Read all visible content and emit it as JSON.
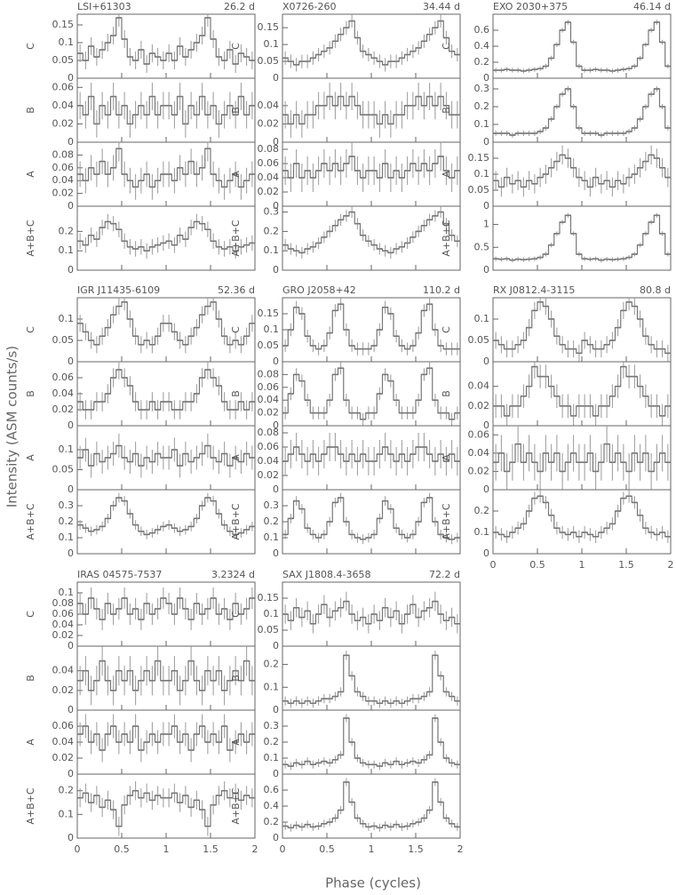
{
  "figure": {
    "xlabel": "Phase (cycles)",
    "ylabel": "Intensity (ASM counts/s)"
  },
  "chart_data": [
    {
      "type": "step",
      "title": "LSI+61303",
      "period": "26.2 d",
      "xlim": [
        0,
        2
      ],
      "xticks": [
        0,
        0.5,
        1,
        1.5,
        2
      ],
      "panels": [
        {
          "label": "C",
          "ylim": [
            0,
            0.18
          ],
          "yticks": [
            0,
            0.05,
            0.1,
            0.15
          ],
          "values": [
            0.07,
            0.05,
            0.09,
            0.06,
            0.08,
            0.1,
            0.12,
            0.17,
            0.11,
            0.06,
            0.05,
            0.08,
            0.04,
            0.07,
            0.06,
            0.05
          ],
          "error": 0.025
        },
        {
          "label": "B",
          "ylim": [
            0,
            0.07
          ],
          "yticks": [
            0,
            0.02,
            0.04,
            0.06
          ],
          "values": [
            0.04,
            0.03,
            0.05,
            0.02,
            0.04,
            0.03,
            0.05,
            0.03,
            0.04,
            0.02,
            0.03,
            0.04,
            0.03,
            0.05,
            0.03,
            0.04
          ],
          "error": 0.015
        },
        {
          "label": "A",
          "ylim": [
            0,
            0.1
          ],
          "yticks": [
            0,
            0.02,
            0.04,
            0.06,
            0.08
          ],
          "values": [
            0.05,
            0.04,
            0.06,
            0.05,
            0.07,
            0.05,
            0.06,
            0.09,
            0.05,
            0.04,
            0.03,
            0.04,
            0.05,
            0.03,
            0.04,
            0.05
          ],
          "error": 0.02
        },
        {
          "label": "A+B+C",
          "ylim": [
            0,
            0.33
          ],
          "yticks": [
            0,
            0.1,
            0.2
          ],
          "values": [
            0.15,
            0.13,
            0.18,
            0.16,
            0.22,
            0.25,
            0.24,
            0.21,
            0.15,
            0.12,
            0.11,
            0.12,
            0.1,
            0.12,
            0.13,
            0.14
          ],
          "error": 0.04
        }
      ]
    },
    {
      "type": "step",
      "title": "X0726-260",
      "period": "34.44 d",
      "xlim": [
        0,
        2
      ],
      "xticks": [
        0,
        0.5,
        1,
        1.5,
        2
      ],
      "panels": [
        {
          "label": "C",
          "ylim": [
            0,
            0.19
          ],
          "yticks": [
            0,
            0.05,
            0.1,
            0.15
          ],
          "values": [
            0.06,
            0.05,
            0.04,
            0.05,
            0.05,
            0.06,
            0.07,
            0.08,
            0.09,
            0.11,
            0.13,
            0.15,
            0.17,
            0.12,
            0.08,
            0.07
          ],
          "error": 0.02
        },
        {
          "label": "B",
          "ylim": [
            0,
            0.07
          ],
          "yticks": [
            0,
            0.02,
            0.04
          ],
          "values": [
            0.03,
            0.02,
            0.03,
            0.02,
            0.03,
            0.03,
            0.04,
            0.04,
            0.05,
            0.04,
            0.05,
            0.04,
            0.05,
            0.04,
            0.03,
            0.03
          ],
          "error": 0.015
        },
        {
          "label": "A",
          "ylim": [
            0,
            0.09
          ],
          "yticks": [
            0,
            0.02,
            0.04,
            0.06,
            0.08
          ],
          "values": [
            0.05,
            0.04,
            0.06,
            0.04,
            0.05,
            0.04,
            0.05,
            0.06,
            0.05,
            0.06,
            0.05,
            0.06,
            0.07,
            0.05,
            0.04,
            0.05
          ],
          "error": 0.02
        },
        {
          "label": "A+B+C",
          "ylim": [
            0,
            0.33
          ],
          "yticks": [
            0,
            0.1,
            0.2,
            0.3
          ],
          "values": [
            0.13,
            0.11,
            0.1,
            0.09,
            0.11,
            0.12,
            0.14,
            0.17,
            0.2,
            0.23,
            0.26,
            0.28,
            0.3,
            0.24,
            0.18,
            0.15
          ],
          "error": 0.03
        }
      ]
    },
    {
      "type": "step",
      "title": "EXO 2030+375",
      "period": "46.14 d",
      "xlim": [
        0,
        2
      ],
      "xticks": [
        0,
        0.5,
        1,
        1.5,
        2
      ],
      "panels": [
        {
          "label": "C",
          "ylim": [
            0,
            0.8
          ],
          "yticks": [
            0,
            0.2,
            0.4,
            0.6
          ],
          "values": [
            0.1,
            0.1,
            0.11,
            0.1,
            0.1,
            0.09,
            0.1,
            0.11,
            0.12,
            0.15,
            0.25,
            0.42,
            0.6,
            0.7,
            0.45,
            0.15
          ],
          "error": 0.03
        },
        {
          "label": "B",
          "ylim": [
            0,
            0.36
          ],
          "yticks": [
            0,
            0.1,
            0.2,
            0.3
          ],
          "values": [
            0.05,
            0.05,
            0.05,
            0.04,
            0.05,
            0.05,
            0.05,
            0.05,
            0.06,
            0.08,
            0.13,
            0.2,
            0.27,
            0.3,
            0.2,
            0.08
          ],
          "error": 0.015
        },
        {
          "label": "A",
          "ylim": [
            0,
            0.2
          ],
          "yticks": [
            0,
            0.05,
            0.1,
            0.15
          ],
          "values": [
            0.08,
            0.06,
            0.09,
            0.07,
            0.08,
            0.06,
            0.08,
            0.07,
            0.09,
            0.1,
            0.12,
            0.14,
            0.16,
            0.15,
            0.12,
            0.09
          ],
          "error": 0.03
        },
        {
          "label": "A+B+C",
          "ylim": [
            0,
            1.4
          ],
          "yticks": [
            0,
            0.5,
            1
          ],
          "values": [
            0.25,
            0.24,
            0.25,
            0.22,
            0.24,
            0.23,
            0.24,
            0.25,
            0.28,
            0.35,
            0.55,
            0.8,
            1.05,
            1.2,
            0.8,
            0.35
          ],
          "error": 0.05
        }
      ]
    },
    {
      "type": "step",
      "title": "IGR J11435-6109",
      "period": "52.36 d",
      "xlim": [
        0,
        2
      ],
      "xticks": [
        0,
        0.5,
        1,
        1.5,
        2
      ],
      "panels": [
        {
          "label": "C",
          "ylim": [
            0,
            0.15
          ],
          "yticks": [
            0,
            0.05,
            0.1
          ],
          "values": [
            0.09,
            0.07,
            0.05,
            0.04,
            0.06,
            0.08,
            0.11,
            0.13,
            0.14,
            0.1,
            0.06,
            0.04,
            0.05,
            0.04,
            0.06,
            0.09
          ],
          "error": 0.02
        },
        {
          "label": "B",
          "ylim": [
            0,
            0.08
          ],
          "yticks": [
            0,
            0.02,
            0.04,
            0.06
          ],
          "values": [
            0.03,
            0.02,
            0.02,
            0.03,
            0.03,
            0.04,
            0.06,
            0.07,
            0.06,
            0.05,
            0.03,
            0.02,
            0.02,
            0.03,
            0.02,
            0.03
          ],
          "error": 0.012
        },
        {
          "label": "A",
          "ylim": [
            0,
            0.16
          ],
          "yticks": [
            0,
            0.05,
            0.1
          ],
          "values": [
            0.08,
            0.1,
            0.06,
            0.09,
            0.07,
            0.08,
            0.09,
            0.11,
            0.08,
            0.07,
            0.09,
            0.06,
            0.08,
            0.07,
            0.09,
            0.08
          ],
          "error": 0.03
        },
        {
          "label": "A+B+C",
          "ylim": [
            0,
            0.4
          ],
          "yticks": [
            0,
            0.1,
            0.2,
            0.3
          ],
          "values": [
            0.18,
            0.16,
            0.14,
            0.15,
            0.17,
            0.22,
            0.3,
            0.35,
            0.33,
            0.25,
            0.18,
            0.14,
            0.12,
            0.13,
            0.15,
            0.17
          ],
          "error": 0.03
        }
      ]
    },
    {
      "type": "step",
      "title": "GRO J2058+42",
      "period": "110.2 d",
      "xlim": [
        0,
        2
      ],
      "xticks": [
        0,
        0.5,
        1,
        1.5,
        2
      ],
      "panels": [
        {
          "label": "C",
          "ylim": [
            0,
            0.2
          ],
          "yticks": [
            0,
            0.05,
            0.1,
            0.15
          ],
          "values": [
            0.05,
            0.1,
            0.17,
            0.15,
            0.08,
            0.05,
            0.04,
            0.05,
            0.09,
            0.16,
            0.18,
            0.1,
            0.05,
            0.04,
            0.04,
            0.04
          ],
          "error": 0.02
        },
        {
          "label": "B",
          "ylim": [
            0,
            0.1
          ],
          "yticks": [
            0,
            0.02,
            0.04,
            0.06,
            0.08
          ],
          "values": [
            0.02,
            0.05,
            0.08,
            0.07,
            0.04,
            0.02,
            0.02,
            0.02,
            0.04,
            0.08,
            0.09,
            0.04,
            0.02,
            0.02,
            0.01,
            0.02
          ],
          "error": 0.01
        },
        {
          "label": "A",
          "ylim": [
            0,
            0.09
          ],
          "yticks": [
            0,
            0.02,
            0.04,
            0.06,
            0.08
          ],
          "values": [
            0.04,
            0.05,
            0.06,
            0.05,
            0.04,
            0.05,
            0.04,
            0.05,
            0.06,
            0.06,
            0.05,
            0.04,
            0.05,
            0.04,
            0.05,
            0.04
          ],
          "error": 0.02
        },
        {
          "label": "A+B+C",
          "ylim": [
            0,
            0.4
          ],
          "yticks": [
            0,
            0.1,
            0.2,
            0.3
          ],
          "values": [
            0.12,
            0.22,
            0.33,
            0.28,
            0.16,
            0.12,
            0.1,
            0.12,
            0.2,
            0.32,
            0.35,
            0.2,
            0.12,
            0.1,
            0.09,
            0.1
          ],
          "error": 0.03
        }
      ]
    },
    {
      "type": "step",
      "title": "RX J0812.4-3115",
      "period": "80.8 d",
      "xlim": [
        0,
        2
      ],
      "xticks": [
        0,
        0.5,
        1,
        1.5,
        2
      ],
      "panels": [
        {
          "label": "C",
          "ylim": [
            0,
            0.15
          ],
          "yticks": [
            0,
            0.05,
            0.1
          ],
          "values": [
            0.05,
            0.04,
            0.03,
            0.03,
            0.04,
            0.05,
            0.08,
            0.12,
            0.14,
            0.13,
            0.1,
            0.06,
            0.04,
            0.03,
            0.03,
            0.02
          ],
          "error": 0.02
        },
        {
          "label": "B",
          "ylim": [
            0,
            0.065
          ],
          "yticks": [
            0,
            0.02,
            0.04
          ],
          "values": [
            0.02,
            0.02,
            0.01,
            0.02,
            0.02,
            0.03,
            0.04,
            0.06,
            0.05,
            0.05,
            0.04,
            0.03,
            0.02,
            0.02,
            0.01,
            0.02
          ],
          "error": 0.012
        },
        {
          "label": "A",
          "ylim": [
            0,
            0.07
          ],
          "yticks": [
            0,
            0.02,
            0.04,
            0.06
          ],
          "values": [
            0.03,
            0.04,
            0.02,
            0.03,
            0.05,
            0.03,
            0.04,
            0.03,
            0.02,
            0.04,
            0.03,
            0.04,
            0.02,
            0.03,
            0.04,
            0.03
          ],
          "error": 0.02
        },
        {
          "label": "A+B+C",
          "ylim": [
            0,
            0.3
          ],
          "yticks": [
            0,
            0.1,
            0.2
          ],
          "values": [
            0.1,
            0.09,
            0.08,
            0.1,
            0.12,
            0.14,
            0.2,
            0.26,
            0.27,
            0.24,
            0.18,
            0.12,
            0.1,
            0.09,
            0.1,
            0.08
          ],
          "error": 0.03
        }
      ]
    },
    {
      "type": "step",
      "title": "IRAS 04575-7537",
      "period": "3.2324 d",
      "xlim": [
        0,
        2
      ],
      "xticks": [
        0,
        0.5,
        1,
        1.5,
        2
      ],
      "panels": [
        {
          "label": "C",
          "ylim": [
            0,
            0.12
          ],
          "yticks": [
            0,
            0.02,
            0.04,
            0.06,
            0.08,
            0.1
          ],
          "values": [
            0.08,
            0.06,
            0.09,
            0.07,
            0.05,
            0.08,
            0.06,
            0.07,
            0.09,
            0.06,
            0.07,
            0.05,
            0.08,
            0.06,
            0.07,
            0.09
          ],
          "error": 0.02
        },
        {
          "label": "B",
          "ylim": [
            0,
            0.065
          ],
          "yticks": [
            0,
            0.02,
            0.04
          ],
          "values": [
            0.03,
            0.04,
            0.02,
            0.03,
            0.05,
            0.03,
            0.02,
            0.04,
            0.03,
            0.04,
            0.02,
            0.03,
            0.04,
            0.03,
            0.05,
            0.03
          ],
          "error": 0.015
        },
        {
          "label": "A",
          "ylim": [
            0,
            0.08
          ],
          "yticks": [
            0,
            0.02,
            0.04,
            0.06
          ],
          "values": [
            0.05,
            0.06,
            0.04,
            0.05,
            0.03,
            0.05,
            0.06,
            0.04,
            0.05,
            0.04,
            0.06,
            0.03,
            0.04,
            0.05,
            0.04,
            0.05
          ],
          "error": 0.015
        },
        {
          "label": "A+B+C",
          "ylim": [
            0,
            0.27
          ],
          "yticks": [
            0,
            0.1,
            0.2
          ],
          "values": [
            0.17,
            0.19,
            0.15,
            0.18,
            0.13,
            0.16,
            0.12,
            0.05,
            0.14,
            0.18,
            0.2,
            0.17,
            0.19,
            0.16,
            0.18,
            0.17
          ],
          "error": 0.04
        }
      ]
    },
    {
      "type": "step",
      "title": "SAX J1808.4-3658",
      "period": "72.2 d",
      "xlim": [
        0,
        2
      ],
      "xticks": [
        0,
        0.5,
        1,
        1.5,
        2
      ],
      "panels": [
        {
          "label": "C",
          "ylim": [
            0,
            0.2
          ],
          "yticks": [
            0,
            0.05,
            0.1,
            0.15
          ],
          "values": [
            0.1,
            0.08,
            0.12,
            0.09,
            0.11,
            0.07,
            0.1,
            0.13,
            0.09,
            0.11,
            0.12,
            0.14,
            0.1,
            0.08,
            0.09,
            0.07
          ],
          "error": 0.03
        },
        {
          "label": "B",
          "ylim": [
            0,
            0.28
          ],
          "yticks": [
            0,
            0.1,
            0.2
          ],
          "values": [
            0.04,
            0.03,
            0.04,
            0.03,
            0.04,
            0.03,
            0.04,
            0.05,
            0.05,
            0.06,
            0.08,
            0.24,
            0.15,
            0.08,
            0.06,
            0.04
          ],
          "error": 0.02
        },
        {
          "label": "A",
          "ylim": [
            0,
            0.4
          ],
          "yticks": [
            0,
            0.1,
            0.2,
            0.3
          ],
          "values": [
            0.06,
            0.05,
            0.07,
            0.06,
            0.08,
            0.06,
            0.07,
            0.08,
            0.07,
            0.09,
            0.12,
            0.35,
            0.2,
            0.1,
            0.07,
            0.06
          ],
          "error": 0.025
        },
        {
          "label": "A+B+C",
          "ylim": [
            0,
            0.8
          ],
          "yticks": [
            0,
            0.2,
            0.4,
            0.6
          ],
          "values": [
            0.15,
            0.13,
            0.16,
            0.14,
            0.17,
            0.14,
            0.15,
            0.18,
            0.2,
            0.25,
            0.35,
            0.7,
            0.45,
            0.25,
            0.18,
            0.14
          ],
          "error": 0.05
        }
      ]
    }
  ]
}
